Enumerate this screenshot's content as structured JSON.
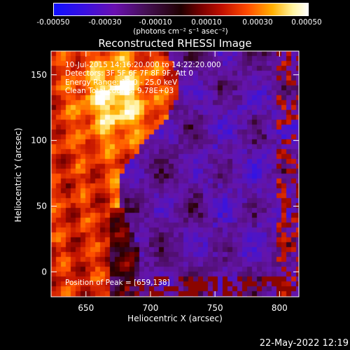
{
  "colorbar": {
    "ticks": [
      "-0.00050",
      "-0.00030",
      "-0.00010",
      "0.00010",
      "0.00030",
      "0.00050"
    ],
    "unit": "(photons cm⁻² s⁻¹ asec⁻²)"
  },
  "chart_data": {
    "type": "heatmap",
    "title": "Reconstructed RHESSI Image",
    "xlabel": "Heliocentric X (arcsec)",
    "ylabel": "Heliocentric Y (arcsec)",
    "xlim": [
      623,
      815
    ],
    "ylim": [
      -19,
      168
    ],
    "xticks": [
      650,
      700,
      750,
      800
    ],
    "yticks": [
      0,
      50,
      100,
      150
    ],
    "color_range": [
      -0.0005,
      0.0005
    ],
    "colormap": [
      "#1010ff",
      "#6a10b0",
      "#200000",
      "#c01000",
      "#ffb000",
      "#ffffff"
    ],
    "peak": [
      659,
      138
    ],
    "annotations": [
      "10-Jul-2015 14:16:20.000 to 14:22:20.000",
      "Detectors: 3F 5F 6F 7F 8F 9F, Att 0",
      "Energy Range: 12.0 - 25.0 keV",
      "Clean   Total counts: 9.78E+03"
    ],
    "peak_text": "Position of Peak = [659,138]"
  },
  "footer": {
    "date": "22-May-2022 12:19"
  }
}
